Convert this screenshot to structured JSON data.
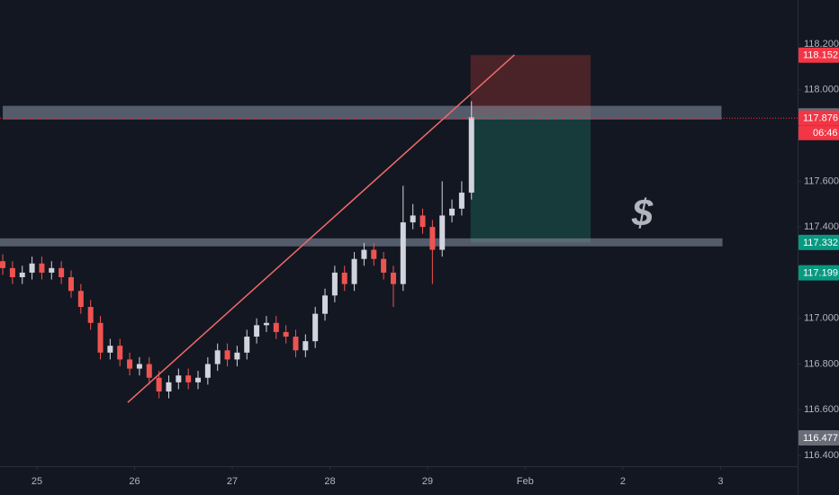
{
  "chart_data": {
    "type": "candlestick",
    "xlim": [
      -0.378,
      7.78
    ],
    "ylim": [
      116.353,
      118.393
    ],
    "xticks": [
      {
        "value": 0,
        "label": "25"
      },
      {
        "value": 1,
        "label": "26"
      },
      {
        "value": 2,
        "label": "27"
      },
      {
        "value": 3,
        "label": "28"
      },
      {
        "value": 4,
        "label": "29"
      },
      {
        "value": 5,
        "label": "Feb"
      },
      {
        "value": 6,
        "label": "2"
      },
      {
        "value": 7,
        "label": "3"
      }
    ],
    "yticks": [
      {
        "value": 116.4,
        "label": "116.400"
      },
      {
        "value": 116.6,
        "label": "116.600"
      },
      {
        "value": 116.8,
        "label": "116.800"
      },
      {
        "value": 117,
        "label": "117.000"
      },
      {
        "value": 117.4,
        "label": "117.400"
      },
      {
        "value": 117.6,
        "label": "117.600"
      },
      {
        "value": 118,
        "label": "118.000"
      },
      {
        "value": 118.2,
        "label": "118.200"
      }
    ],
    "up_color": "#d1d4dc",
    "down_color": "#ef5350",
    "x": [
      -0.35,
      -0.25,
      -0.15,
      -0.05,
      0.05,
      0.15,
      0.25,
      0.35,
      0.45,
      0.55,
      0.65,
      0.75,
      0.85,
      0.95,
      1.05,
      1.15,
      1.25,
      1.35,
      1.45,
      1.55,
      1.65,
      1.75,
      1.85,
      1.95,
      2.05,
      2.15,
      2.25,
      2.35,
      2.45,
      2.55,
      2.65,
      2.75,
      2.85,
      2.95,
      3.05,
      3.15,
      3.25,
      3.35,
      3.45,
      3.55,
      3.65,
      3.75,
      3.85,
      3.95,
      4.05,
      4.15,
      4.25,
      4.35,
      4.45
    ],
    "open": [
      117.25,
      117.22,
      117.18,
      117.2,
      117.24,
      117.2,
      117.22,
      117.18,
      117.12,
      117.05,
      116.98,
      116.85,
      116.88,
      116.82,
      116.78,
      116.8,
      116.74,
      116.68,
      116.72,
      116.75,
      116.72,
      116.74,
      116.8,
      116.86,
      116.82,
      116.85,
      116.92,
      116.97,
      116.98,
      116.94,
      116.92,
      116.86,
      116.9,
      117.02,
      117.1,
      117.2,
      117.15,
      117.26,
      117.3,
      117.26,
      117.2,
      117.15,
      117.42,
      117.45,
      117.4,
      117.3,
      117.45,
      117.48,
      117.55
    ],
    "high": [
      117.28,
      117.25,
      117.23,
      117.27,
      117.27,
      117.25,
      117.25,
      117.21,
      117.15,
      117.08,
      117.01,
      116.91,
      116.91,
      116.85,
      116.83,
      116.83,
      116.77,
      116.75,
      116.78,
      116.78,
      116.77,
      116.83,
      116.89,
      116.89,
      116.88,
      116.95,
      117.0,
      117.01,
      117.01,
      116.97,
      116.95,
      116.93,
      117.05,
      117.13,
      117.23,
      117.23,
      117.29,
      117.33,
      117.33,
      117.29,
      117.23,
      117.58,
      117.5,
      117.48,
      117.43,
      117.6,
      117.52,
      117.6,
      117.95
    ],
    "low": [
      117.19,
      117.15,
      117.15,
      117.17,
      117.17,
      117.17,
      117.15,
      117.09,
      117.02,
      116.95,
      116.82,
      116.82,
      116.79,
      116.75,
      116.75,
      116.71,
      116.65,
      116.65,
      116.69,
      116.69,
      116.69,
      116.71,
      116.77,
      116.79,
      116.79,
      116.82,
      116.89,
      116.94,
      116.91,
      116.89,
      116.83,
      116.83,
      116.87,
      116.99,
      117.07,
      117.12,
      117.12,
      117.23,
      117.23,
      117.17,
      117.05,
      117.12,
      117.39,
      117.37,
      117.15,
      117.27,
      117.42,
      117.45,
      117.52
    ],
    "close": [
      117.22,
      117.18,
      117.2,
      117.24,
      117.2,
      117.22,
      117.18,
      117.12,
      117.05,
      116.98,
      116.85,
      116.88,
      116.82,
      116.78,
      116.8,
      116.74,
      116.68,
      116.72,
      116.75,
      116.72,
      116.74,
      116.8,
      116.86,
      116.82,
      116.85,
      116.92,
      116.97,
      116.98,
      116.94,
      116.92,
      116.86,
      116.9,
      117.02,
      117.1,
      117.2,
      117.15,
      117.26,
      117.3,
      117.26,
      117.2,
      117.15,
      117.42,
      117.45,
      117.4,
      117.3,
      117.45,
      117.48,
      117.55,
      117.88
    ],
    "zones": [
      {
        "x": [
          -0.35,
          7.01
        ],
        "y": [
          117.87,
          117.93
        ]
      },
      {
        "x": [
          -0.378,
          7.02
        ],
        "y": [
          117.315,
          117.35
        ]
      }
    ],
    "trend_line": {
      "x": [
        0.93,
        4.89
      ],
      "y": [
        116.632,
        118.153
      ],
      "color": "#f06a6a"
    },
    "position": {
      "x": [
        4.44,
        5.67
      ],
      "stop": 118.152,
      "entry": 117.886,
      "target": 117.332,
      "stop_color": "#4a2329",
      "target_color": "#173a3a"
    },
    "current_price": 117.876,
    "price_markers": [
      {
        "value": 118.152,
        "color": "#f23645"
      },
      {
        "value": 117.886,
        "color": "#6a6d78"
      },
      {
        "value": 117.876,
        "color": "#f23645"
      },
      {
        "value": 117.332,
        "color": "#089981"
      },
      {
        "value": 117.199,
        "color": "#089981"
      },
      {
        "value": 116.477,
        "color": "#6a6d78"
      }
    ],
    "countdown": "06:46",
    "annotation": {
      "text": "$",
      "x": 6.2,
      "y": 117.45,
      "color": "#f05a5a"
    }
  }
}
